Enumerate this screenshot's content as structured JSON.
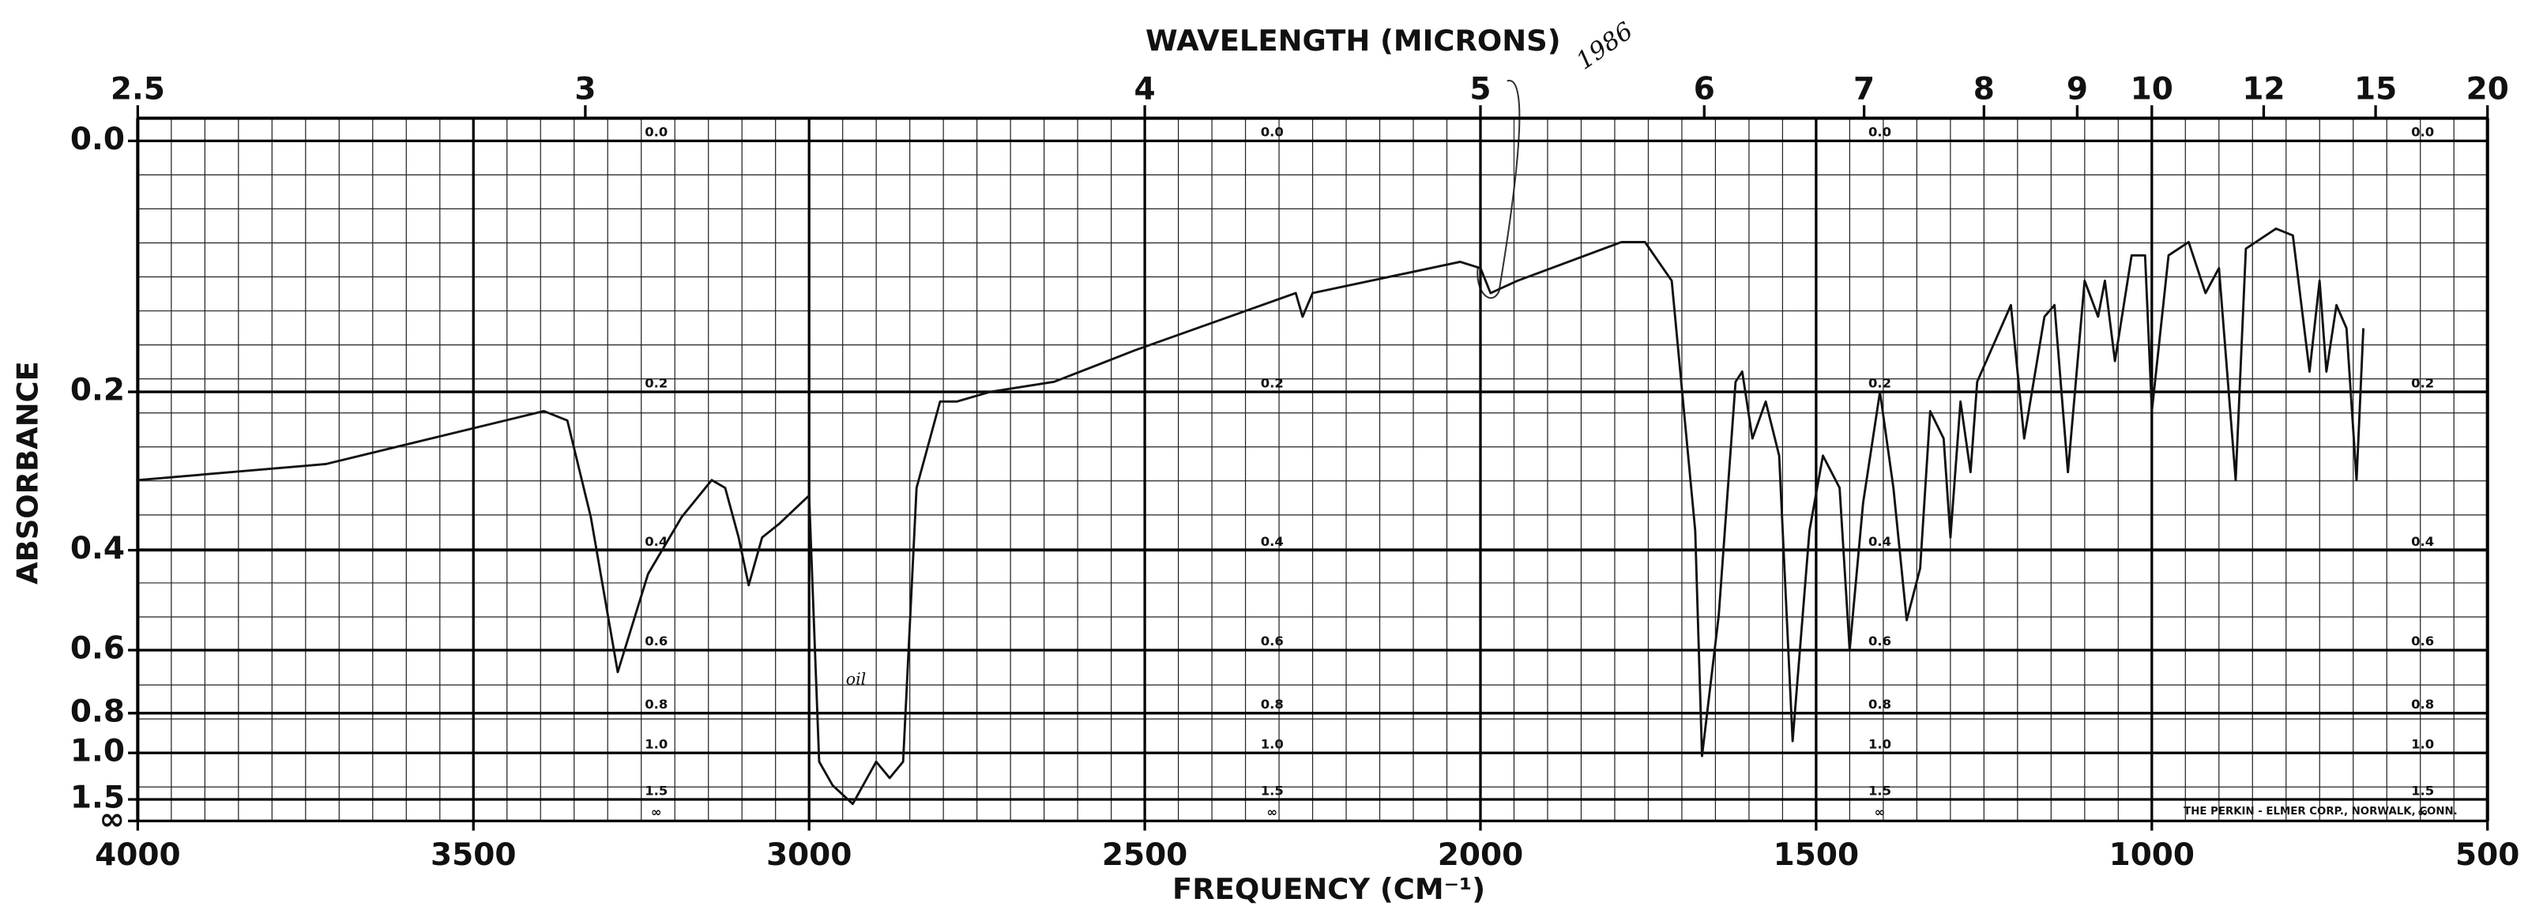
{
  "chart_data": {
    "type": "line",
    "title": "WAVELENGTH (MICRONS)",
    "x_label": "FREQUENCY (CM⁻¹)",
    "y_label": "ABSORBANCE",
    "footer": "THE PERKIN - ELMER CORP., NORWALK, CONN.",
    "annotations": [
      "1986",
      "oil"
    ],
    "yscale": "absorbance",
    "grid": true,
    "xlim": [
      4000,
      500
    ],
    "xticks": [
      4000,
      3500,
      3000,
      2500,
      2000,
      1500,
      1000,
      500
    ],
    "x2lim": [
      2.5,
      20
    ],
    "x2ticks": [
      2.5,
      3,
      4,
      5,
      6,
      7,
      8,
      9,
      10,
      12,
      15,
      20
    ],
    "ylim": [
      0,
      null
    ],
    "yticks": [
      {
        "value": 0,
        "label": "0.0"
      },
      0.2,
      0.4,
      0.6,
      0.8,
      {
        "value": 1,
        "label": "1.0"
      },
      1.5,
      {
        "value": null,
        "label": "∞"
      }
    ],
    "x": [
      4000,
      3720,
      3395,
      3360,
      3325,
      3285,
      3240,
      3190,
      3145,
      3125,
      3105,
      3090,
      3070,
      3045,
      3000,
      2985,
      2965,
      2935,
      2900,
      2880,
      2860,
      2840,
      2805,
      2780,
      2730,
      2635,
      2515,
      2275,
      2265,
      2250,
      2030,
      2000,
      1985,
      1945,
      1790,
      1755,
      1715,
      1680,
      1670,
      1645,
      1620,
      1610,
      1595,
      1575,
      1555,
      1535,
      1510,
      1490,
      1465,
      1450,
      1430,
      1405,
      1385,
      1365,
      1345,
      1330,
      1310,
      1300,
      1285,
      1270,
      1260,
      1210,
      1190,
      1160,
      1145,
      1125,
      1100,
      1080,
      1070,
      1055,
      1030,
      1010,
      1000,
      975,
      945,
      920,
      900,
      875,
      860,
      815,
      790,
      765,
      750,
      740,
      725,
      710,
      695,
      685
    ],
    "series": [
      {
        "color": "#111111",
        "values": [
          0.3,
          0.28,
          0.22,
          0.23,
          0.35,
          0.66,
          0.44,
          0.35,
          0.3,
          0.31,
          0.38,
          0.46,
          0.38,
          0.36,
          0.32,
          1.06,
          1.28,
          1.6,
          1.06,
          1.2,
          1.06,
          0.31,
          0.21,
          0.21,
          0.2,
          0.19,
          0.16,
          0.11,
          0.13,
          0.11,
          0.085,
          0.09,
          0.11,
          0.1,
          0.07,
          0.07,
          0.1,
          0.37,
          1.02,
          0.52,
          0.19,
          0.18,
          0.25,
          0.21,
          0.27,
          0.93,
          0.37,
          0.27,
          0.31,
          0.6,
          0.33,
          0.2,
          0.31,
          0.53,
          0.43,
          0.22,
          0.25,
          0.38,
          0.21,
          0.29,
          0.19,
          0.12,
          0.25,
          0.13,
          0.12,
          0.29,
          0.1,
          0.13,
          0.1,
          0.17,
          0.08,
          0.08,
          0.22,
          0.08,
          0.07,
          0.11,
          0.09,
          0.3,
          0.075,
          0.06,
          0.065,
          0.18,
          0.1,
          0.18,
          0.12,
          0.14,
          0.3,
          0.14
        ]
      }
    ]
  }
}
